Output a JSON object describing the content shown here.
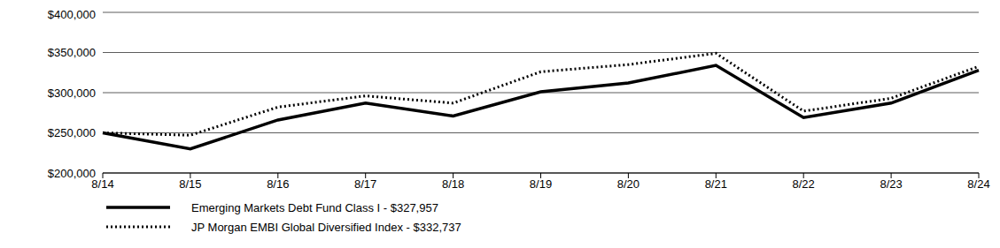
{
  "chart_data": {
    "type": "line",
    "categories": [
      "8/14",
      "8/15",
      "8/16",
      "8/17",
      "8/18",
      "8/19",
      "8/20",
      "8/21",
      "8/22",
      "8/23",
      "8/24"
    ],
    "series": [
      {
        "name": "Emerging Markets Debt Fund Class I - $327,957",
        "color": "#000000",
        "line_style": "solid",
        "values": [
          250000,
          230000,
          266000,
          287000,
          271000,
          301000,
          312000,
          334000,
          269000,
          287000,
          327957
        ]
      },
      {
        "name": "JP Morgan EMBI Global Diversified Index - $332,737",
        "color": "#000000",
        "line_style": "dotted",
        "values": [
          250000,
          247000,
          282000,
          296000,
          287000,
          326000,
          335000,
          349000,
          277000,
          293000,
          332737
        ]
      }
    ],
    "ylim": [
      200000,
      400000
    ],
    "yticks": [
      {
        "value": 200000,
        "label": "$200,000"
      },
      {
        "value": 250000,
        "label": "$250,000"
      },
      {
        "value": 300000,
        "label": "$300,000"
      },
      {
        "value": 350000,
        "label": "$350,000"
      },
      {
        "value": 400000,
        "label": "$400,000"
      }
    ],
    "grid": true,
    "legend": "bottom"
  }
}
